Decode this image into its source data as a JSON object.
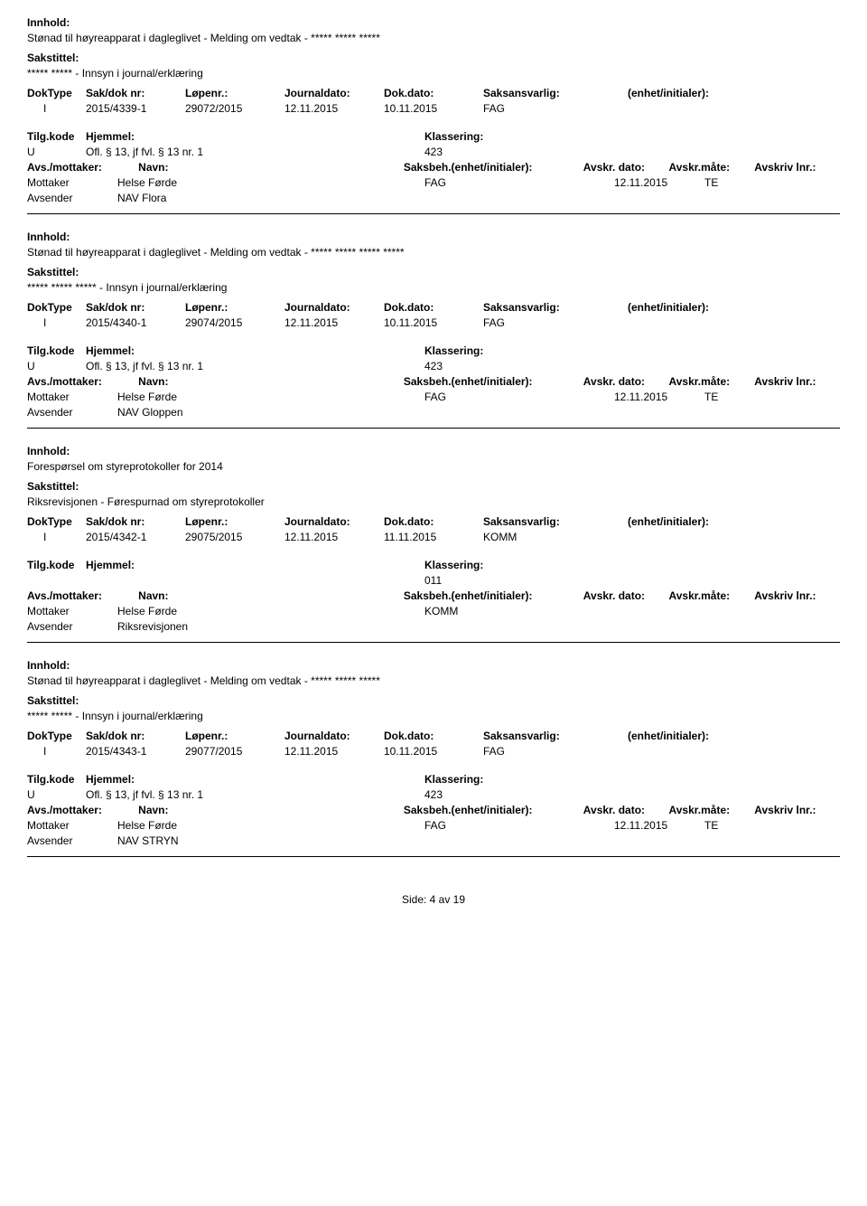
{
  "labels": {
    "innhold": "Innhold:",
    "sakstittel": "Sakstittel:",
    "doktype": "DokType",
    "sakdok": "Sak/dok nr:",
    "lopenr": "Løpenr.:",
    "journaldato": "Journaldato:",
    "dokdato": "Dok.dato:",
    "saksansvarlig": "Saksansvarlig:",
    "enhet": "(enhet/initialer):",
    "tilgkode": "Tilg.kode",
    "hjemmel": "Hjemmel:",
    "klassering": "Klassering:",
    "avsmottaker": "Avs./mottaker:",
    "navn": "Navn:",
    "saksbeh": "Saksbeh.(enhet/initialer):",
    "avskrdato": "Avskr. dato:",
    "avskrmate": "Avskr.måte:",
    "avskrivlnr": "Avskriv lnr.:",
    "mottaker": "Mottaker",
    "avsender": "Avsender"
  },
  "entries": [
    {
      "innhold": "Stønad til høyreapparat i dagleglivet - Melding om vedtak - ***** ***** *****",
      "sakstittel": "***** ***** - Innsyn i journal/erklæring",
      "doktype": "I",
      "sakdok": "2015/4339-1",
      "lopenr": "29072/2015",
      "journaldato": "12.11.2015",
      "dokdato": "10.11.2015",
      "saksansvarlig": "FAG",
      "enhet": "",
      "tilgkode": "U",
      "hjemmel": "Ofl. § 13, jf fvl. § 13 nr. 1",
      "klassering": "423",
      "rows": [
        {
          "role": "Mottaker",
          "party": "Helse Førde",
          "fag": "FAG",
          "date": "12.11.2015",
          "te": "TE"
        },
        {
          "role": "Avsender",
          "party": "NAV Flora",
          "fag": "",
          "date": "",
          "te": ""
        }
      ]
    },
    {
      "innhold": "Stønad til høyreapparat i dagleglivet - Melding om vedtak - ***** ***** ***** *****",
      "sakstittel": "***** ***** ***** - Innsyn i journal/erklæring",
      "doktype": "I",
      "sakdok": "2015/4340-1",
      "lopenr": "29074/2015",
      "journaldato": "12.11.2015",
      "dokdato": "10.11.2015",
      "saksansvarlig": "FAG",
      "enhet": "",
      "tilgkode": "U",
      "hjemmel": "Ofl. § 13, jf fvl. § 13 nr. 1",
      "klassering": "423",
      "rows": [
        {
          "role": "Mottaker",
          "party": "Helse Førde",
          "fag": "FAG",
          "date": "12.11.2015",
          "te": "TE"
        },
        {
          "role": "Avsender",
          "party": "NAV Gloppen",
          "fag": "",
          "date": "",
          "te": ""
        }
      ]
    },
    {
      "innhold": "Forespørsel om styreprotokoller for 2014",
      "sakstittel": "Riksrevisjonen - Førespurnad om styreprotokoller",
      "doktype": "I",
      "sakdok": "2015/4342-1",
      "lopenr": "29075/2015",
      "journaldato": "12.11.2015",
      "dokdato": "11.11.2015",
      "saksansvarlig": "KOMM",
      "enhet": "",
      "tilgkode": "",
      "hjemmel": "",
      "klassering": "011",
      "rows": [
        {
          "role": "Mottaker",
          "party": "Helse Førde",
          "fag": "KOMM",
          "date": "",
          "te": ""
        },
        {
          "role": "Avsender",
          "party": "Riksrevisjonen",
          "fag": "",
          "date": "",
          "te": ""
        }
      ]
    },
    {
      "innhold": "Stønad til høyreapparat i dagleglivet - Melding om vedtak - ***** ***** *****",
      "sakstittel": "***** ***** - Innsyn i journal/erklæring",
      "doktype": "I",
      "sakdok": "2015/4343-1",
      "lopenr": "29077/2015",
      "journaldato": "12.11.2015",
      "dokdato": "10.11.2015",
      "saksansvarlig": "FAG",
      "enhet": "",
      "tilgkode": "U",
      "hjemmel": "Ofl. § 13, jf fvl. § 13 nr. 1",
      "klassering": "423",
      "rows": [
        {
          "role": "Mottaker",
          "party": "Helse Førde",
          "fag": "FAG",
          "date": "12.11.2015",
          "te": "TE"
        },
        {
          "role": "Avsender",
          "party": "NAV STRYN",
          "fag": "",
          "date": "",
          "te": ""
        }
      ]
    }
  ],
  "footer": "Side: 4 av 19"
}
